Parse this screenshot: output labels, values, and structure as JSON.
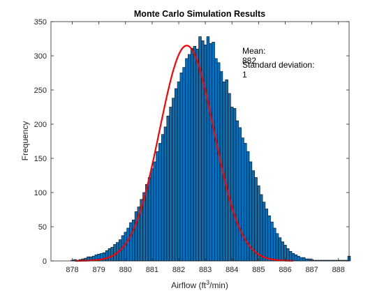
{
  "chart_data": {
    "type": "bar",
    "title": "Monte Carlo Simulation Results",
    "xlabel": {
      "prefix": "Airflow (ft",
      "sup": "3",
      "suffix": "/min)"
    },
    "ylabel": "Frequency",
    "xlim": [
      877.2,
      888.4
    ],
    "ylim": [
      0,
      350
    ],
    "xticks": [
      878,
      879,
      880,
      881,
      882,
      883,
      884,
      885,
      886,
      887,
      888
    ],
    "yticks": [
      0,
      50,
      100,
      150,
      200,
      250,
      300,
      350
    ],
    "grid": false,
    "bar_color": "#0072BD",
    "bar_edge_color": "#000000",
    "fit_color": "#FF0000",
    "bin_start": 877.95,
    "bin_width": 0.1,
    "counts": [
      1,
      2,
      1,
      2,
      3,
      4,
      6,
      6,
      7,
      9,
      10,
      11,
      12,
      15,
      18,
      20,
      24,
      27,
      31,
      37,
      42,
      48,
      56,
      60,
      72,
      79,
      90,
      100,
      112,
      122,
      135,
      145,
      160,
      172,
      185,
      196,
      212,
      225,
      238,
      252,
      262,
      275,
      283,
      296,
      302,
      311,
      314,
      310,
      328,
      322,
      316,
      328,
      318,
      320,
      296,
      290,
      277,
      262,
      265,
      245,
      225,
      223,
      205,
      195,
      180,
      172,
      160,
      145,
      132,
      122,
      110,
      97,
      86,
      76,
      66,
      57,
      48,
      40,
      34,
      28,
      23,
      18,
      14,
      11,
      9,
      7,
      5,
      5,
      3,
      3,
      2,
      1,
      1,
      1,
      1,
      1,
      1,
      1,
      1,
      1,
      1,
      1,
      1,
      1,
      7
    ],
    "fit": {
      "type": "normal",
      "mean": 882.3,
      "sd": 1.02,
      "peak": 315,
      "range": [
        878.1,
        886.3
      ]
    },
    "annotations": {
      "mean_label": "Mean:",
      "mean_value": "882",
      "sd_label": "Standard deviation:",
      "sd_value": "1"
    }
  }
}
